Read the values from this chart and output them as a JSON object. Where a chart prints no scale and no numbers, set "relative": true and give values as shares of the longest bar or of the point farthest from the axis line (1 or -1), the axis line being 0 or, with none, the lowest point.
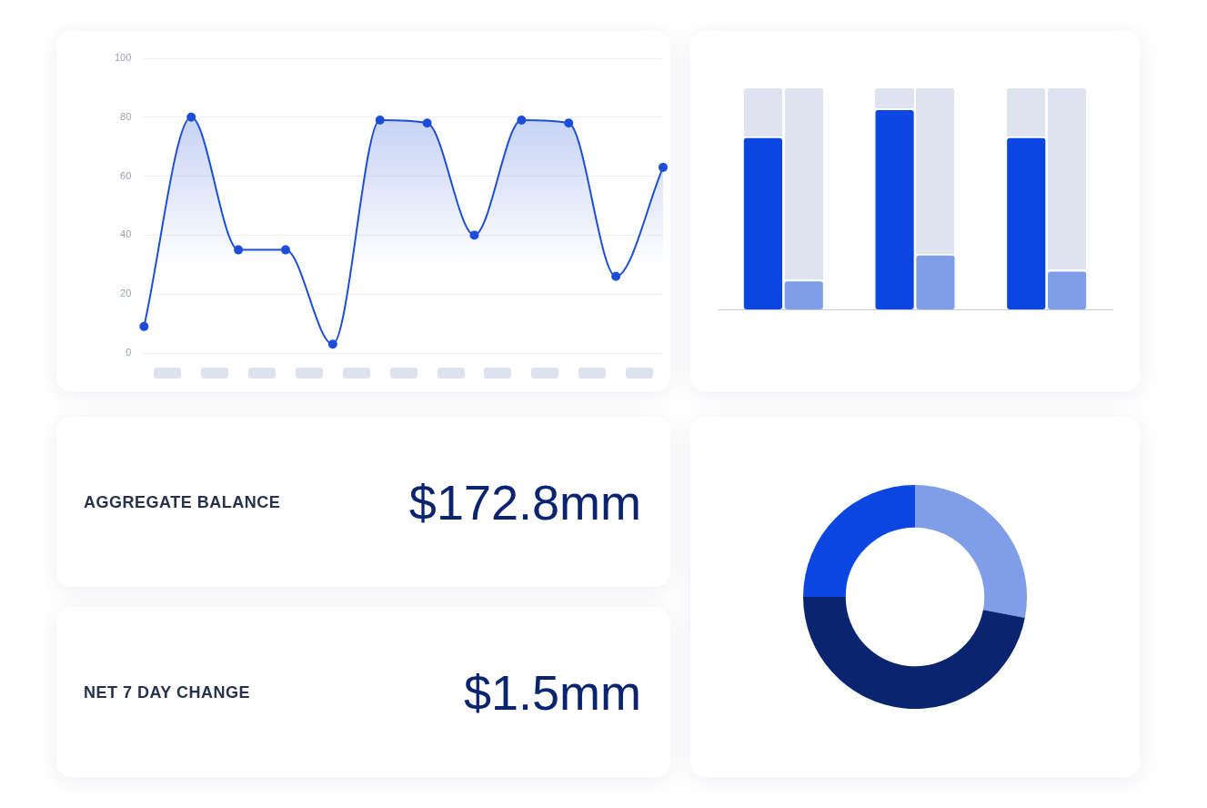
{
  "chart_data": [
    {
      "type": "area",
      "categories": [
        null,
        null,
        null,
        null,
        null,
        null,
        null,
        null,
        null,
        null,
        null,
        null
      ],
      "series": [
        {
          "color": "#1d4ed8",
          "values": [
            9,
            80,
            35,
            35,
            3,
            79,
            78,
            40,
            79,
            78,
            26,
            63
          ]
        }
      ],
      "ylim": [
        0,
        100
      ],
      "yticks": [
        0,
        20,
        40,
        60,
        80,
        100
      ],
      "grid": "y",
      "tick_labels": "y",
      "marker": "circle",
      "legend": false
    },
    {
      "type": "bar",
      "relative": true,
      "categories": [
        null,
        null,
        null
      ],
      "series": [
        {
          "color": "#0b46e0",
          "values": [
            0.86,
            1,
            0.86
          ]
        },
        {
          "color": "#809de8",
          "values": [
            0.14,
            0.27,
            0.19
          ]
        }
      ],
      "legend": false,
      "tick_labels": false
    },
    {
      "type": "other",
      "title": "AGGREGATE BALANCE",
      "annotations": [
        "$172.8mm"
      ]
    },
    {
      "type": "donut",
      "categories": [
        null,
        null,
        null
      ],
      "values": [
        28,
        47,
        25
      ],
      "colors": [
        "#809de8",
        "#0a2470",
        "#0b46e0"
      ],
      "legend": false
    },
    {
      "type": "other",
      "title": "NET 7 DAY CHANGE",
      "annotations": [
        "$1.5mm"
      ]
    }
  ]
}
